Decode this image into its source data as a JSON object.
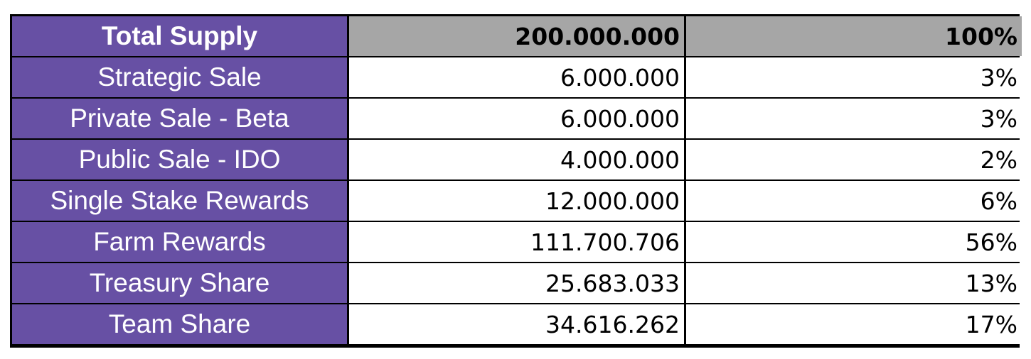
{
  "header": {
    "label": "Total Supply",
    "amount": "200.000.000",
    "percent": "100%"
  },
  "rows": [
    {
      "label": "Strategic Sale",
      "amount": "6.000.000",
      "percent": "3%"
    },
    {
      "label": "Private Sale - Beta",
      "amount": "6.000.000",
      "percent": "3%"
    },
    {
      "label": "Public Sale - IDO",
      "amount": "4.000.000",
      "percent": "2%"
    },
    {
      "label": "Single Stake Rewards",
      "amount": "12.000.000",
      "percent": "6%"
    },
    {
      "label": "Farm Rewards",
      "amount": "111.700.706",
      "percent": "56%"
    },
    {
      "label": "Treasury Share",
      "amount": "25.683.033",
      "percent": "13%"
    },
    {
      "label": "Team Share",
      "amount": "34.616.262",
      "percent": "17%"
    }
  ],
  "colors": {
    "label_background": "#6750a4",
    "header_background": "#a6a6a6",
    "grid_lines": "#000000"
  }
}
